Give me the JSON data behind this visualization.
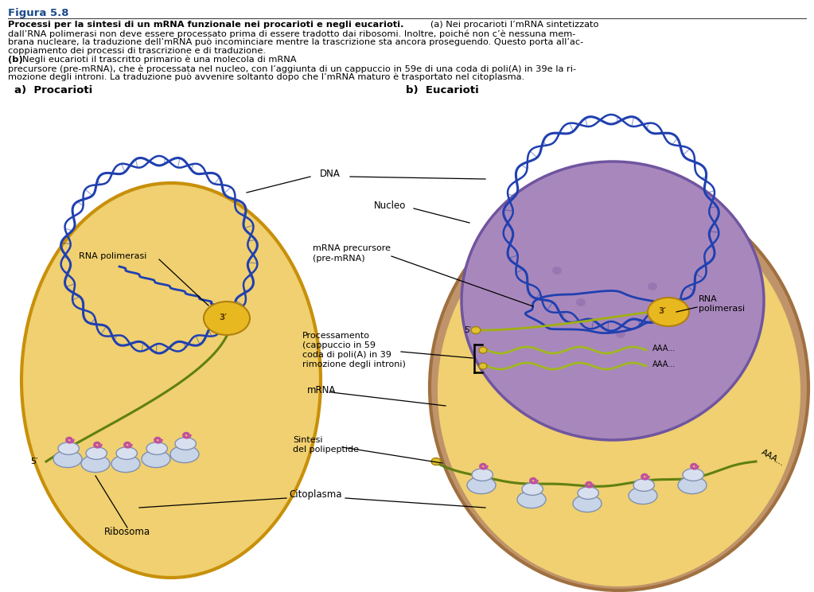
{
  "figure_title": "Figura 5.8",
  "title_color": "#1a5276",
  "bg_color": "#ffffff",
  "cell_a_fill": "#f0d080",
  "cell_a_edge": "#c89030",
  "cell_b_outer_fill": "#c8a878",
  "cell_b_outer_edge": "#a07848",
  "cell_b_cyto_fill": "#f0d080",
  "nucleus_fill": "#b090c0",
  "nucleus_edge": "#806090",
  "dna_color": "#2040b0",
  "mrna_color_a": "#608010",
  "mrna_color_b": "#a0b820",
  "rna_pol_fill": "#e8b820",
  "rna_pol_edge": "#b08010",
  "ribosome_fill": "#c8d4e8",
  "ribosome_edge": "#8090b0",
  "poly_color": "#c050a0",
  "text_color": "#000000",
  "label_a": "a)  Procarioti",
  "label_b": "b)  Eucarioti"
}
